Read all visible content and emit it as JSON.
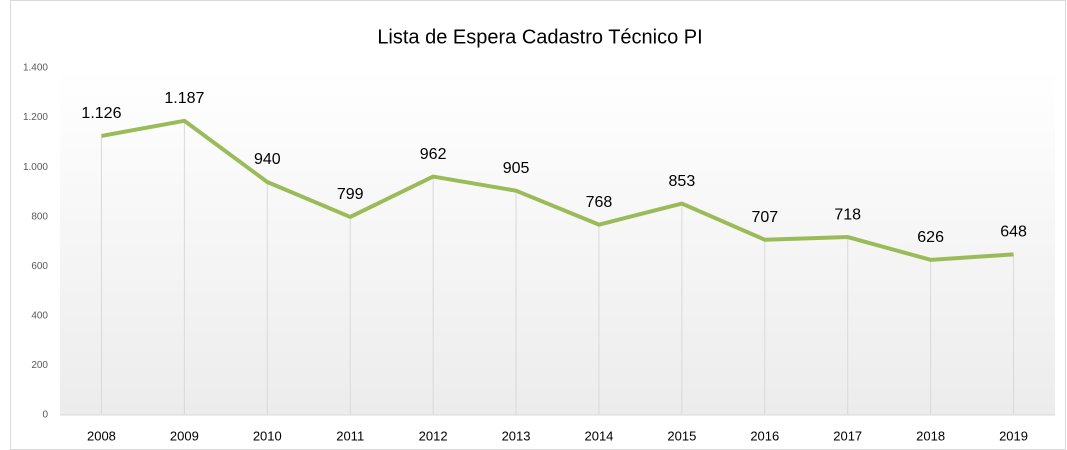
{
  "chart_data": {
    "type": "line",
    "title": "Lista de Espera Cadastro Técnico PI",
    "categories": [
      "2008",
      "2009",
      "2010",
      "2011",
      "2012",
      "2013",
      "2014",
      "2015",
      "2016",
      "2017",
      "2018",
      "2019"
    ],
    "series": [
      {
        "name": "Lista de Espera",
        "color": "#9bbb59",
        "values": [
          1126,
          1187,
          940,
          799,
          962,
          905,
          768,
          853,
          707,
          718,
          626,
          648
        ],
        "value_labels": [
          "1.126",
          "1.187",
          "940",
          "799",
          "962",
          "905",
          "768",
          "853",
          "707",
          "718",
          "626",
          "648"
        ]
      }
    ],
    "ylim": [
      0,
      1400
    ],
    "yticks": [
      0,
      200,
      400,
      600,
      800,
      {
        "value": 1000,
        "label": "1.000"
      },
      {
        "value": 1200,
        "label": "1.200"
      },
      {
        "value": 1400,
        "label": "1.400"
      }
    ],
    "drop_lines": true
  }
}
